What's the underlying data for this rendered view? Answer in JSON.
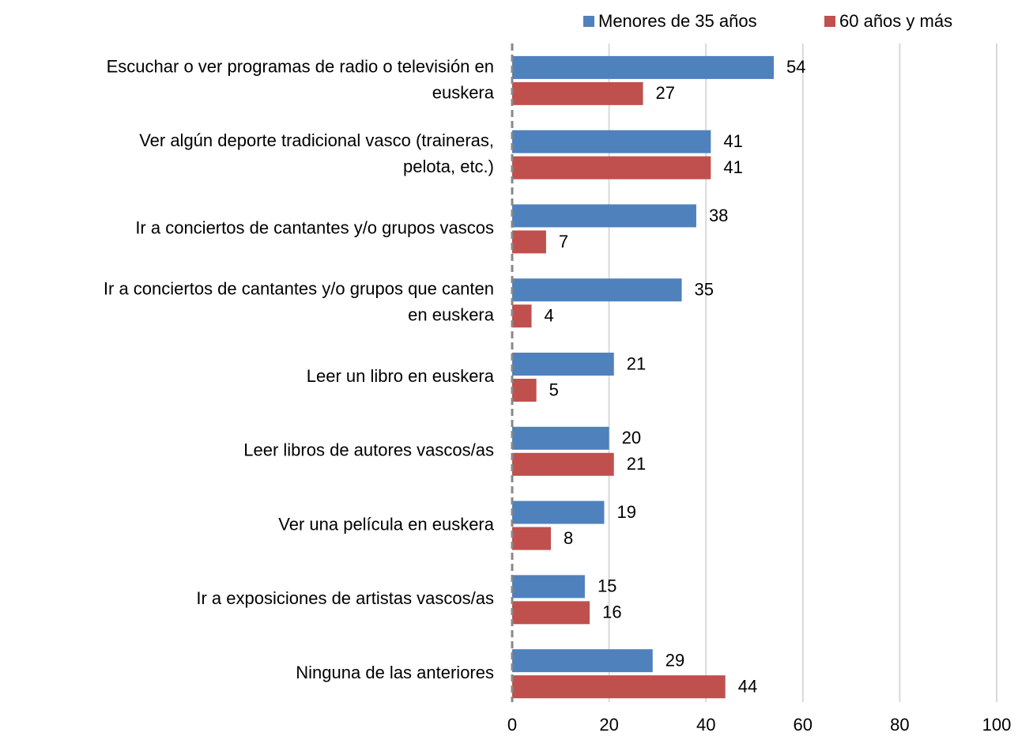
{
  "chart_data": {
    "type": "barh",
    "categories": [
      "Escuchar o ver programas de radio o televisión en\neuskera",
      "Ver algún deporte tradicional vasco (traineras,\npelota, etc.)",
      "Ir a conciertos de cantantes y/o grupos vascos",
      "Ir a conciertos de cantantes y/o grupos que canten\nen euskera",
      "Leer un libro en euskera",
      "Leer libros de autores vascos/as",
      "Ver una película en euskera",
      "Ir a exposiciones de artistas vascos/as",
      "Ninguna de las anteriores"
    ],
    "series": [
      {
        "name": "Menores de 35 años",
        "color": "#4f81bd",
        "values": [
          54,
          41,
          38,
          35,
          21,
          20,
          19,
          15,
          29
        ]
      },
      {
        "name": "60 años y más",
        "color": "#c0504d",
        "values": [
          27,
          41,
          7,
          4,
          5,
          21,
          8,
          16,
          44
        ]
      }
    ],
    "xlim": [
      0,
      100
    ],
    "xticks": [
      0,
      20,
      40,
      60,
      80,
      100
    ],
    "grid": true,
    "legend": "top"
  }
}
